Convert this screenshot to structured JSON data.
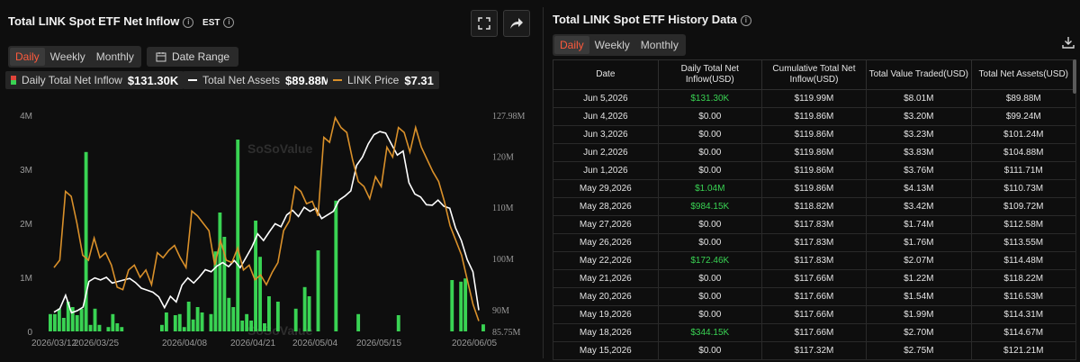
{
  "left_panel": {
    "title": "Total LINK Spot ETF Net Inflow",
    "timezone": "EST",
    "tabs": [
      "Daily",
      "Weekly",
      "Monthly"
    ],
    "active_tab": "Daily",
    "date_range_label": "Date Range",
    "legend": [
      {
        "label": "Daily Total Net Inflow",
        "value": "$131.30K",
        "color": "#39d353"
      },
      {
        "label": "Total Net Assets",
        "value": "$89.88M",
        "color": "#ffffff"
      },
      {
        "label": "LINK Price",
        "value": "$7.31",
        "color": "#d9902a"
      }
    ],
    "watermark": "SoSoValue"
  },
  "chart_data": {
    "type": "bar",
    "x_ticks": [
      "2026/03/12",
      "2026/03/25",
      "2026/04/08",
      "2026/04/21",
      "2026/05/04",
      "2026/05/15",
      "2026/06/05"
    ],
    "left_axis_ticks": [
      "4M",
      "3M",
      "2M",
      "1M",
      "0"
    ],
    "right_axis_ticks": [
      "127.98M",
      "120M",
      "110M",
      "100M",
      "90M",
      "85.75M"
    ],
    "left_ylim": [
      0,
      4000000
    ],
    "right_ylim": [
      85750000,
      127980000
    ],
    "series": [
      {
        "name": "Daily Total Net Inflow",
        "type": "bar",
        "color": "#39d353",
        "values": [
          0.32,
          0.32,
          0.42,
          0.25,
          0.55,
          0.45,
          0.3,
          0.42,
          3.32,
          0.12,
          0.42,
          0.12,
          0.0,
          0.08,
          0.32,
          0.15,
          0.08,
          0.0,
          0.0,
          0.0,
          0.0,
          0.0,
          0.0,
          0.0,
          0.0,
          0.12,
          0.35,
          0.0,
          0.3,
          0.32,
          0.08,
          0.55,
          0.22,
          0.45,
          0.35,
          0.0,
          0.32,
          1.48,
          2.2,
          1.75,
          0.62,
          0.45,
          3.55,
          0.2,
          0.32,
          0.2,
          2.05,
          1.38,
          0.15,
          0.65,
          0.0,
          0.55,
          0.0,
          0.0,
          0.0,
          0.42,
          0.0,
          0.82,
          0.65,
          0.0,
          1.5,
          0.0,
          0.0,
          0.0,
          2.42,
          0.0,
          0.0,
          0.0,
          0.0,
          0.32,
          0.0,
          0.0,
          0.0,
          0.0,
          0.0,
          0.0,
          0.0,
          0.0,
          0.3,
          0.0,
          0.0,
          0.0,
          0.0,
          0.0,
          0.0,
          0.0,
          0.0,
          0.0,
          0.0,
          0.0,
          0.95,
          0.0,
          0.92,
          0.98,
          0.0,
          0.0,
          0.0,
          0.13
        ]
      },
      {
        "name": "Total Net Assets",
        "type": "line",
        "color": "#ffffff",
        "values": [
          89.5,
          90.2,
          92.8,
          89.4,
          89.8,
          90.5,
          95.5,
          96.2,
          95.8,
          96.3,
          95.2,
          95.5,
          95.8,
          96.1,
          95.3,
          94.2,
          93.8,
          93.4,
          92.5,
          90.4,
          92.6,
          91.5,
          94.8,
          96.2,
          95.2,
          96.4,
          97.8,
          97.4,
          98.5,
          99.2,
          98.4,
          99.6,
          98.2,
          100.2,
          102.2,
          104.8,
          103.5,
          105.2,
          106.8,
          106.2,
          108.5,
          109.4,
          108.2,
          110.0,
          109.2,
          109.8,
          107.8,
          108.5,
          109.2,
          111.4,
          112.2,
          113.2,
          118.2,
          119.8,
          122.4,
          124.2,
          124.8,
          124.5,
          122.3,
          120.2,
          121.0,
          114.8,
          112.6,
          112.0,
          110.5,
          110.4,
          111.4,
          110.2,
          109.8,
          106.0,
          103.5,
          99.8,
          97.4,
          89.88
        ]
      },
      {
        "name": "LINK Price",
        "type": "line",
        "color": "#d9902a",
        "values": [
          8.4,
          8.55,
          9.95,
          9.85,
          9.3,
          8.65,
          8.55,
          9.0,
          8.6,
          8.7,
          8.45,
          8.0,
          7.95,
          8.35,
          8.45,
          8.2,
          8.35,
          8.05,
          8.7,
          8.6,
          8.75,
          8.85,
          8.6,
          8.4,
          9.55,
          9.45,
          9.3,
          9.15,
          8.45,
          8.95,
          8.55,
          8.5,
          8.8,
          8.35,
          8.45,
          8.15,
          8.25,
          8.05,
          8.3,
          8.5,
          9.15,
          9.35,
          10.05,
          9.95,
          9.7,
          9.75,
          9.45,
          11.05,
          10.95,
          11.45,
          11.25,
          11.15,
          10.6,
          10.15,
          10.05,
          9.8,
          10.25,
          10.05,
          10.85,
          10.65,
          11.25,
          11.15,
          10.75,
          11.25,
          10.85,
          10.6,
          10.35,
          10.15,
          9.75,
          9.25,
          8.95,
          8.65,
          8.15,
          7.65,
          7.31
        ]
      }
    ]
  },
  "right_panel": {
    "title": "Total LINK Spot ETF History Data",
    "tabs": [
      "Daily",
      "Weekly",
      "Monthly"
    ],
    "active_tab": "Daily",
    "columns": [
      "Date",
      "Daily Total Net Inflow(USD)",
      "Cumulative Total Net Inflow(USD)",
      "Total Value Traded(USD)",
      "Total Net Assets(USD)"
    ],
    "rows": [
      [
        "Jun 5,2026",
        "$131.30K",
        "$119.99M",
        "$8.01M",
        "$89.88M"
      ],
      [
        "Jun 4,2026",
        "$0.00",
        "$119.86M",
        "$3.20M",
        "$99.24M"
      ],
      [
        "Jun 3,2026",
        "$0.00",
        "$119.86M",
        "$3.23M",
        "$101.24M"
      ],
      [
        "Jun 2,2026",
        "$0.00",
        "$119.86M",
        "$3.83M",
        "$104.88M"
      ],
      [
        "Jun 1,2026",
        "$0.00",
        "$119.86M",
        "$3.76M",
        "$111.71M"
      ],
      [
        "May 29,2026",
        "$1.04M",
        "$119.86M",
        "$4.13M",
        "$110.73M"
      ],
      [
        "May 28,2026",
        "$984.15K",
        "$118.82M",
        "$3.42M",
        "$109.72M"
      ],
      [
        "May 27,2026",
        "$0.00",
        "$117.83M",
        "$1.74M",
        "$112.58M"
      ],
      [
        "May 26,2026",
        "$0.00",
        "$117.83M",
        "$1.76M",
        "$113.55M"
      ],
      [
        "May 22,2026",
        "$172.46K",
        "$117.83M",
        "$2.07M",
        "$114.48M"
      ],
      [
        "May 21,2026",
        "$0.00",
        "$117.66M",
        "$1.22M",
        "$118.22M"
      ],
      [
        "May 20,2026",
        "$0.00",
        "$117.66M",
        "$1.54M",
        "$116.53M"
      ],
      [
        "May 19,2026",
        "$0.00",
        "$117.66M",
        "$1.99M",
        "$114.31M"
      ],
      [
        "May 18,2026",
        "$344.15K",
        "$117.66M",
        "$2.70M",
        "$114.67M"
      ],
      [
        "May 15,2026",
        "$0.00",
        "$117.32M",
        "$2.75M",
        "$121.21M"
      ]
    ],
    "positive_color": "#39d353",
    "watermark": "SoSoValue"
  }
}
